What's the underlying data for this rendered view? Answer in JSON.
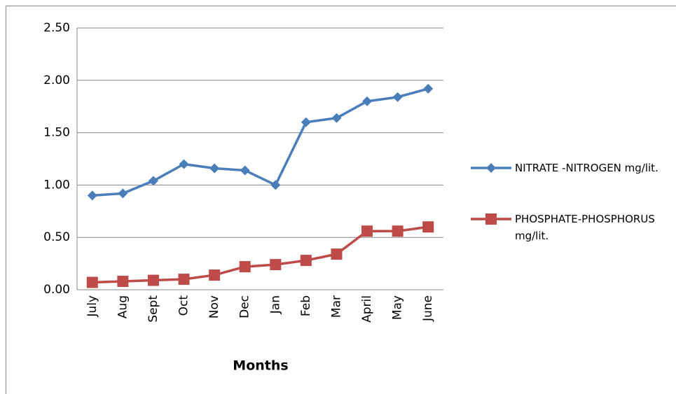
{
  "chart_data": {
    "type": "line",
    "x_label": "Months",
    "categories": [
      "July",
      "Aug",
      "Sept",
      "Oct",
      "Nov",
      "Dec",
      "Jan",
      "Feb",
      "Mar",
      "April",
      "May",
      "June"
    ],
    "series": [
      {
        "name": "NITRATE -NITROGEN mg/lit.",
        "color": "#4a7ebb",
        "marker": "diamond",
        "values": [
          0.9,
          0.92,
          1.04,
          1.2,
          1.16,
          1.14,
          1.0,
          1.6,
          1.64,
          1.8,
          1.84,
          1.92
        ]
      },
      {
        "name": "PHOSPHATE-PHOSPHORUS mg/lit.",
        "color": "#be4b48",
        "marker": "square",
        "values": [
          0.07,
          0.08,
          0.09,
          0.1,
          0.14,
          0.22,
          0.24,
          0.28,
          0.34,
          0.56,
          0.56,
          0.6
        ]
      }
    ],
    "ylim": [
      0,
      2.5
    ],
    "yticks": [
      {
        "value": 0,
        "label": "0.00"
      },
      {
        "value": 0.5,
        "label": "0.50"
      },
      {
        "value": 1,
        "label": "1.00"
      },
      {
        "value": 1.5,
        "label": "1.50"
      },
      {
        "value": 2,
        "label": "2.00"
      },
      {
        "value": 2.5,
        "label": "2.50"
      }
    ],
    "grid": true,
    "legend": "right"
  }
}
